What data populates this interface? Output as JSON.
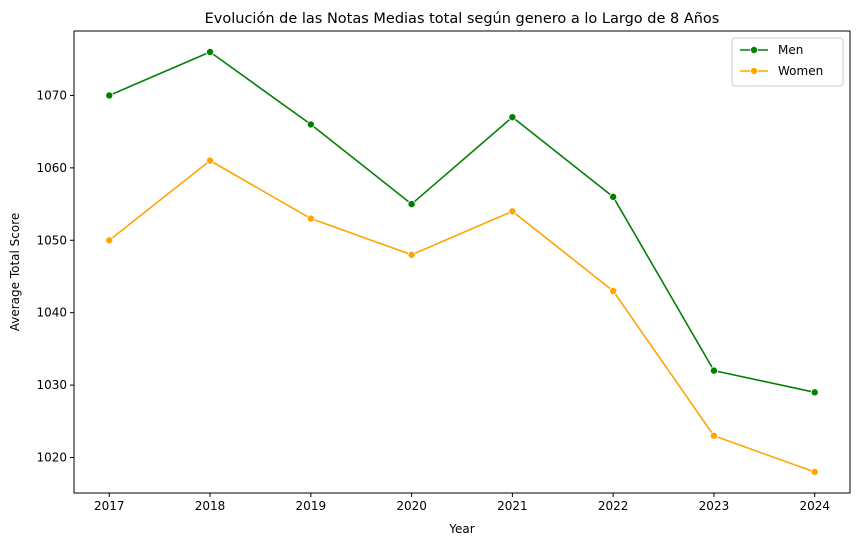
{
  "chart_data": {
    "type": "line",
    "title": "Evolución de las Notas Medias total según genero a lo Largo de 8 Años",
    "xlabel": "Year",
    "ylabel": "Average Total Score",
    "x": [
      2017,
      2018,
      2019,
      2020,
      2021,
      2022,
      2023,
      2024
    ],
    "xlim": [
      2016.65,
      2024.35
    ],
    "ylim": [
      1015.1,
      1078.9
    ],
    "yticks": [
      1020,
      1030,
      1040,
      1050,
      1060,
      1070
    ],
    "grid": false,
    "legend_position": "top-right",
    "series": [
      {
        "name": "Men",
        "color": "#008000",
        "values": [
          1070,
          1076,
          1066,
          1055,
          1067,
          1056,
          1032,
          1029
        ]
      },
      {
        "name": "Women",
        "color": "#FFA500",
        "values": [
          1050,
          1061,
          1053,
          1048,
          1054,
          1043,
          1023,
          1018
        ]
      }
    ]
  }
}
